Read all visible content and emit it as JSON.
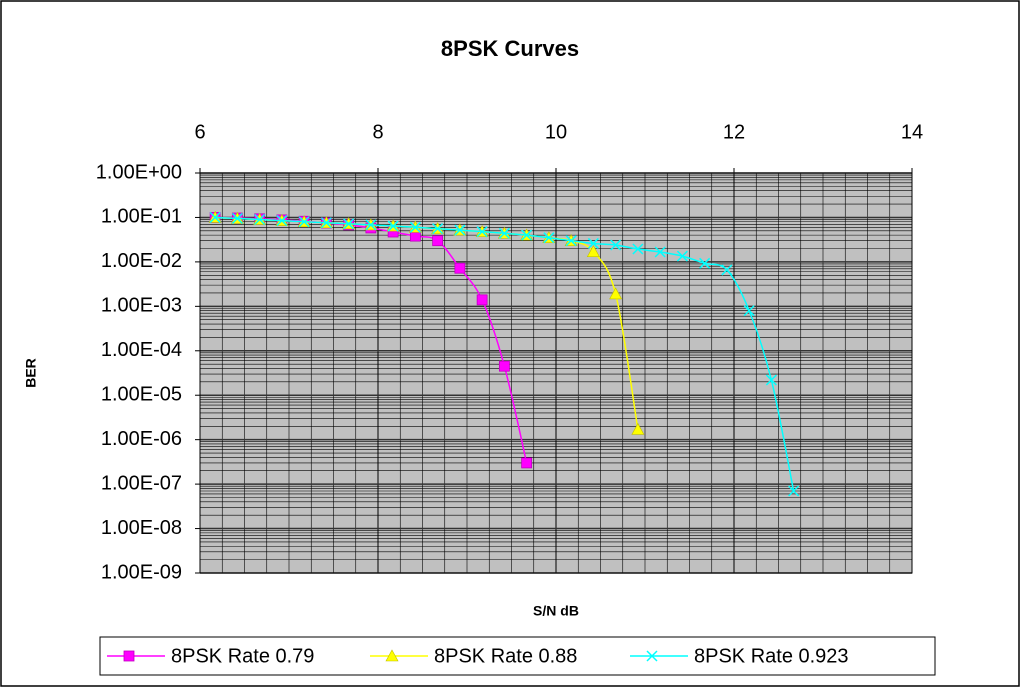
{
  "chart_data": {
    "type": "line",
    "title": "8PSK Curves",
    "x_label": "S/N dB",
    "y_label": "BER",
    "log_y": true,
    "grid": true,
    "minor_grid": true,
    "x_axis_position": "top",
    "legend": "bottom",
    "xlim": [
      6,
      14
    ],
    "xticks": [
      6,
      8,
      10,
      12,
      14
    ],
    "ylim": [
      1e-09,
      1
    ],
    "yticks": [
      {
        "value": 1,
        "label": "1.00E+00"
      },
      {
        "value": 0.1,
        "label": "1.00E-01"
      },
      {
        "value": 0.01,
        "label": "1.00E-02"
      },
      {
        "value": 0.001,
        "label": "1.00E-03"
      },
      {
        "value": 0.0001,
        "label": "1.00E-04"
      },
      {
        "value": 1e-05,
        "label": "1.00E-05"
      },
      {
        "value": 1e-06,
        "label": "1.00E-06"
      },
      {
        "value": 1e-07,
        "label": "1.00E-07"
      },
      {
        "value": 1e-08,
        "label": "1.00E-08"
      },
      {
        "value": 1e-09,
        "label": "1.00E-09"
      }
    ],
    "series": [
      {
        "name": "8PSK Rate 0.79",
        "color": "#ff00ff",
        "marker": "square",
        "x": [
          6.17,
          6.42,
          6.67,
          6.92,
          7.17,
          7.42,
          7.67,
          7.92,
          8.17,
          8.42,
          8.67,
          8.92,
          9.17,
          9.42,
          9.67
        ],
        "values": [
          0.1,
          0.097,
          0.093,
          0.088,
          0.082,
          0.075,
          0.068,
          0.058,
          0.047,
          0.038,
          0.03,
          0.0072,
          0.0014,
          4.5e-05,
          3e-07
        ]
      },
      {
        "name": "8PSK Rate 0.88",
        "color": "#ffff00",
        "marker": "triangle",
        "x": [
          6.17,
          6.42,
          6.67,
          6.92,
          7.17,
          7.42,
          7.67,
          7.92,
          8.17,
          8.42,
          8.67,
          8.92,
          9.17,
          9.42,
          9.67,
          9.92,
          10.17,
          10.42,
          10.67,
          10.92
        ],
        "values": [
          0.1,
          0.095,
          0.09,
          0.085,
          0.08,
          0.076,
          0.072,
          0.068,
          0.064,
          0.06,
          0.056,
          0.052,
          0.048,
          0.044,
          0.04,
          0.035,
          0.03,
          0.017,
          0.0019,
          1.7e-06
        ]
      },
      {
        "name": "8PSK Rate 0.923",
        "color": "#00ffff",
        "marker": "x",
        "x": [
          6.17,
          6.42,
          6.67,
          6.92,
          7.17,
          7.42,
          7.67,
          7.92,
          8.17,
          8.42,
          8.67,
          8.92,
          9.17,
          9.42,
          9.67,
          9.92,
          10.17,
          10.42,
          10.67,
          10.92,
          11.17,
          11.42,
          11.67,
          11.92,
          12.17,
          12.42,
          12.67
        ],
        "values": [
          0.1,
          0.095,
          0.09,
          0.085,
          0.08,
          0.076,
          0.072,
          0.068,
          0.064,
          0.06,
          0.056,
          0.052,
          0.048,
          0.044,
          0.04,
          0.035,
          0.03,
          0.026,
          0.024,
          0.0195,
          0.0167,
          0.0135,
          0.0093,
          0.0066,
          0.0008,
          2.2e-05,
          7e-08
        ]
      }
    ]
  }
}
